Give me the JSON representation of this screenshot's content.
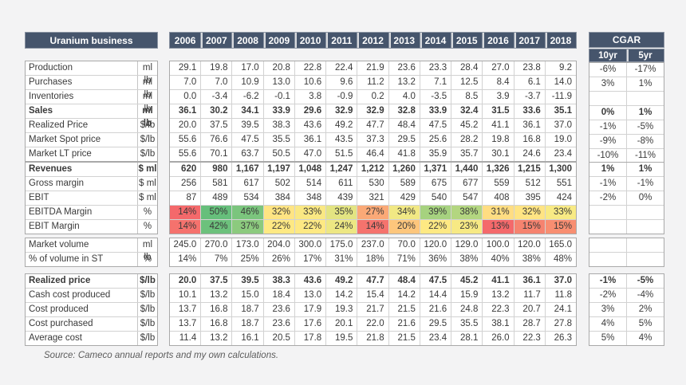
{
  "page": {
    "source_note": "Source: Cameco annual reports and my own calculations.",
    "background_color": "#f3f3f4",
    "header_color": "#46556c"
  },
  "header": {
    "title": "Uranium business",
    "years": [
      "2006",
      "2007",
      "2008",
      "2009",
      "2010",
      "2011",
      "2012",
      "2013",
      "2014",
      "2015",
      "2016",
      "2017",
      "2018"
    ],
    "cgar_label": "CGAR",
    "cgar_columns": [
      "10yr",
      "5yr"
    ]
  },
  "blocks": [
    {
      "rows": [
        {
          "label": "Production",
          "unit": "ml lb",
          "bold": false,
          "values": [
            "29.1",
            "19.8",
            "17.0",
            "20.8",
            "22.8",
            "22.4",
            "21.9",
            "23.6",
            "23.3",
            "28.4",
            "27.0",
            "23.8",
            "9.2"
          ],
          "cgar": [
            "-6%",
            "-17%"
          ]
        },
        {
          "label": "Purchases",
          "unit": "ml lb",
          "bold": false,
          "values": [
            "7.0",
            "7.0",
            "10.9",
            "13.0",
            "10.6",
            "9.6",
            "11.2",
            "13.2",
            "7.1",
            "12.5",
            "8.4",
            "6.1",
            "14.0"
          ],
          "cgar": [
            "3%",
            "1%"
          ]
        },
        {
          "label": "Inventories",
          "unit": "ml lb",
          "bold": false,
          "values": [
            "0.0",
            "-3.4",
            "-6.2",
            "-0.1",
            "3.8",
            "-0.9",
            "0.2",
            "4.0",
            "-3.5",
            "8.5",
            "3.9",
            "-3.7",
            "-11.9"
          ],
          "cgar": [
            "",
            ""
          ]
        },
        {
          "label": "Sales",
          "unit": "ml lb",
          "bold": true,
          "values": [
            "36.1",
            "30.2",
            "34.1",
            "33.9",
            "29.6",
            "32.9",
            "32.9",
            "32.8",
            "33.9",
            "32.4",
            "31.5",
            "33.6",
            "35.1"
          ],
          "cgar": [
            "0%",
            "1%"
          ]
        },
        {
          "label": "Realized Price",
          "unit": "$/lb",
          "bold": false,
          "values": [
            "20.0",
            "37.5",
            "39.5",
            "38.3",
            "43.6",
            "49.2",
            "47.7",
            "48.4",
            "47.5",
            "45.2",
            "41.1",
            "36.1",
            "37.0"
          ],
          "cgar": [
            "-1%",
            "-5%"
          ]
        },
        {
          "label": "Market Spot price",
          "unit": "$/lb",
          "bold": false,
          "values": [
            "55.6",
            "76.6",
            "47.5",
            "35.5",
            "36.1",
            "43.5",
            "37.3",
            "29.5",
            "25.6",
            "28.2",
            "19.8",
            "16.8",
            "19.0"
          ],
          "cgar": [
            "-9%",
            "-8%"
          ]
        },
        {
          "label": "Market LT price",
          "unit": "$/lb",
          "bold": false,
          "values": [
            "55.6",
            "70.1",
            "63.7",
            "50.5",
            "47.0",
            "51.5",
            "46.4",
            "41.8",
            "35.9",
            "35.7",
            "30.1",
            "24.6",
            "23.4"
          ],
          "cgar": [
            "-10%",
            "-11%"
          ]
        }
      ]
    },
    {
      "rows": [
        {
          "label": "Revenues",
          "unit": "$ ml",
          "bold": true,
          "values": [
            "620",
            "980",
            "1,167",
            "1,197",
            "1,048",
            "1,247",
            "1,212",
            "1,260",
            "1,371",
            "1,440",
            "1,326",
            "1,215",
            "1,300"
          ],
          "cgar": [
            "1%",
            "1%"
          ]
        },
        {
          "label": "Gross margin",
          "unit": "$ ml",
          "bold": false,
          "values": [
            "256",
            "581",
            "617",
            "502",
            "514",
            "611",
            "530",
            "589",
            "675",
            "677",
            "559",
            "512",
            "551"
          ],
          "cgar": [
            "-1%",
            "-1%"
          ]
        },
        {
          "label": "EBIT",
          "unit": "$ ml",
          "bold": false,
          "values": [
            "87",
            "489",
            "534",
            "384",
            "348",
            "439",
            "321",
            "429",
            "540",
            "547",
            "408",
            "395",
            "424"
          ],
          "cgar": [
            "-2%",
            "0%"
          ]
        },
        {
          "label": "EBITDA Margin",
          "unit": "%",
          "bold": false,
          "values": [
            "14%",
            "50%",
            "46%",
            "32%",
            "33%",
            "35%",
            "27%",
            "34%",
            "39%",
            "38%",
            "31%",
            "32%",
            "33%"
          ],
          "cgar": [
            "",
            ""
          ],
          "colors": [
            "#F4696B",
            "#66BF7B",
            "#7BC57D",
            "#FFE483",
            "#FAE883",
            "#E3E482",
            "#FBA977",
            "#F1E884",
            "#A6D27F",
            "#B3D680",
            "#FFDD82",
            "#FFE483",
            "#F8EA84"
          ]
        },
        {
          "label": "EBIT Margin",
          "unit": "%",
          "bold": false,
          "values": [
            "14%",
            "42%",
            "37%",
            "22%",
            "22%",
            "24%",
            "14%",
            "20%",
            "22%",
            "23%",
            "13%",
            "15%",
            "15%"
          ],
          "cgar": [
            "",
            ""
          ],
          "colors": [
            "#F5726D",
            "#6CC17C",
            "#8CCA7E",
            "#FEE983",
            "#FEE983",
            "#EDE783",
            "#F5736D",
            "#FDC67C",
            "#FEE983",
            "#F7E984",
            "#F4696B",
            "#F6836F",
            "#F88E71"
          ]
        }
      ]
    },
    {
      "rows": [
        {
          "label": "Market volume",
          "unit": "ml lb",
          "bold": false,
          "values": [
            "245.0",
            "270.0",
            "173.0",
            "204.0",
            "300.0",
            "175.0",
            "237.0",
            "70.0",
            "120.0",
            "129.0",
            "100.0",
            "120.0",
            "165.0"
          ],
          "cgar": [
            "",
            ""
          ]
        },
        {
          "label": "% of volume in ST",
          "unit": "%",
          "bold": false,
          "values": [
            "14%",
            "7%",
            "25%",
            "26%",
            "17%",
            "31%",
            "18%",
            "71%",
            "36%",
            "38%",
            "40%",
            "38%",
            "48%"
          ],
          "cgar": [
            "",
            ""
          ]
        }
      ]
    },
    {
      "rows": [
        {
          "label": "Realized price",
          "unit": "$/lb",
          "bold": true,
          "values": [
            "20.0",
            "37.5",
            "39.5",
            "38.3",
            "43.6",
            "49.2",
            "47.7",
            "48.4",
            "47.5",
            "45.2",
            "41.1",
            "36.1",
            "37.0"
          ],
          "cgar": [
            "-1%",
            "-5%"
          ]
        },
        {
          "label": "Cash cost produced",
          "unit": "$/lb",
          "bold": false,
          "values": [
            "10.1",
            "13.2",
            "15.0",
            "18.4",
            "13.0",
            "14.2",
            "15.4",
            "14.2",
            "14.4",
            "15.9",
            "13.2",
            "11.7",
            "11.8"
          ],
          "cgar": [
            "-2%",
            "-4%"
          ]
        },
        {
          "label": "Cost produced",
          "unit": "$/lb",
          "bold": false,
          "values": [
            "13.7",
            "16.8",
            "18.7",
            "23.6",
            "17.9",
            "19.3",
            "21.7",
            "21.5",
            "21.6",
            "24.8",
            "22.3",
            "20.7",
            "24.1"
          ],
          "cgar": [
            "3%",
            "2%"
          ]
        },
        {
          "label": "Cost purchased",
          "unit": "$/lb",
          "bold": false,
          "values": [
            "13.7",
            "16.8",
            "18.7",
            "23.6",
            "17.6",
            "20.1",
            "22.0",
            "21.6",
            "29.5",
            "35.5",
            "38.1",
            "28.7",
            "27.8"
          ],
          "cgar": [
            "4%",
            "5%"
          ]
        },
        {
          "label": "Average cost",
          "unit": "$/lb",
          "bold": false,
          "values": [
            "11.4",
            "13.2",
            "16.1",
            "20.5",
            "17.8",
            "19.5",
            "21.8",
            "21.5",
            "23.4",
            "28.1",
            "26.0",
            "22.3",
            "26.3"
          ],
          "cgar": [
            "5%",
            "4%"
          ]
        }
      ]
    }
  ]
}
